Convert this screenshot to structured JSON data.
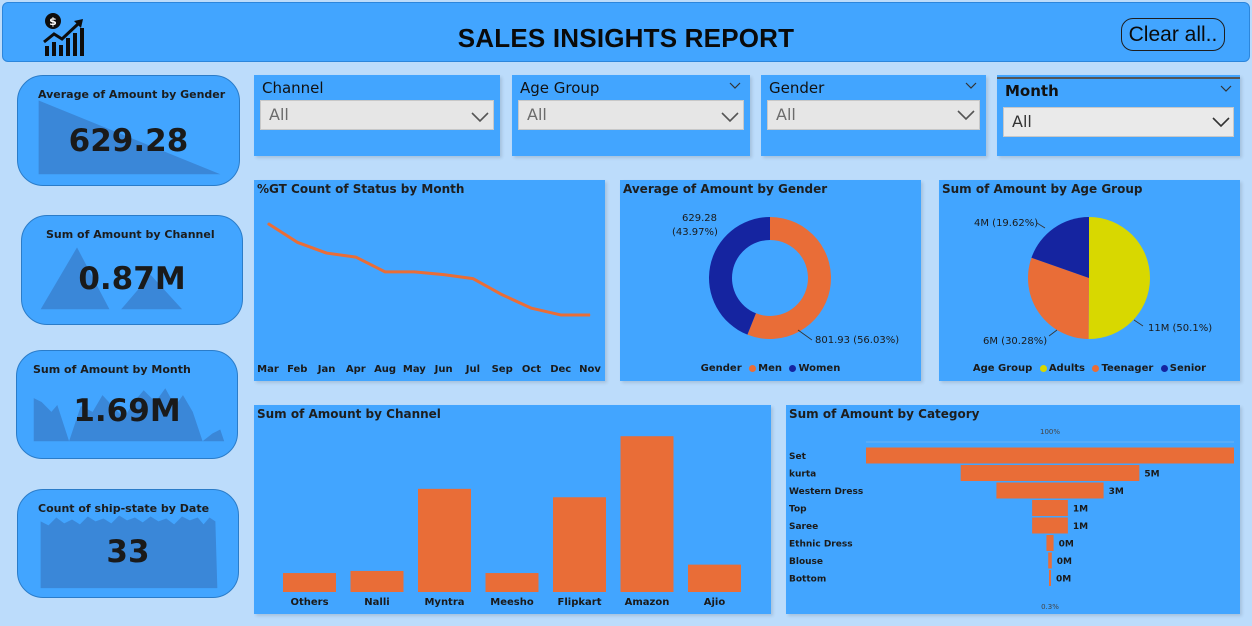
{
  "header": {
    "title": "SALES INSIGHTS REPORT",
    "clear_label": "Clear all..",
    "logo_icon": "sales-growth-chart-icon",
    "logo_badge": "$"
  },
  "colors": {
    "background": "#bcdcfb",
    "panel": "#42a5ff",
    "orange": "#e96d37",
    "navy": "#1524a0",
    "yellow": "#d8d800",
    "kpi_shape": "#3a87d8"
  },
  "kpis": [
    {
      "title": "Average of Amount by Gender",
      "value": "629.28"
    },
    {
      "title": "Sum of Amount by Channel",
      "value": "0.87M"
    },
    {
      "title": "Sum of Amount by Month",
      "value": "1.69M"
    },
    {
      "title": "Count of ship-state by Date",
      "value": "33"
    }
  ],
  "slicers": [
    {
      "label": "Channel",
      "value": "All"
    },
    {
      "label": "Age Group",
      "value": "All"
    },
    {
      "label": "Gender",
      "value": "All"
    },
    {
      "label": "Month",
      "value": "All"
    }
  ],
  "chart_data": [
    {
      "type": "line",
      "title": "%GT Count of Status by Month",
      "categories": [
        "Mar",
        "Feb",
        "Jan",
        "Apr",
        "Aug",
        "May",
        "Jun",
        "Jul",
        "Sep",
        "Oct",
        "Dec",
        "Nov"
      ],
      "values": [
        100,
        86,
        78,
        75,
        64,
        64,
        62,
        59,
        47,
        37,
        32,
        32
      ],
      "ylim": [
        0,
        110
      ],
      "color": "#e96d37"
    },
    {
      "type": "pie",
      "donut": true,
      "title": "Average of Amount by Gender",
      "legend_title": "Gender",
      "slices": [
        {
          "name": "Men",
          "value": 801.93,
          "label": "801.93 (56.03%)",
          "color": "#e96d37"
        },
        {
          "name": "Women",
          "value": 629.28,
          "label_line1": "629.28",
          "label_line2": "(43.97%)",
          "color": "#1524a0"
        }
      ]
    },
    {
      "type": "pie",
      "title": "Sum of Amount by Age Group",
      "legend_title": "Age Group",
      "slices": [
        {
          "name": "Adults",
          "value": 50.1,
          "label": "11M (50.1%)",
          "color": "#d8d800"
        },
        {
          "name": "Teenager",
          "value": 30.28,
          "label": "6M (30.28%)",
          "color": "#e96d37"
        },
        {
          "name": "Senior",
          "value": 19.62,
          "label": "4M (19.62%)",
          "color": "#1524a0"
        }
      ]
    },
    {
      "type": "bar",
      "title": "Sum of Amount by Channel",
      "categories": [
        "Others",
        "Nalli",
        "Myntra",
        "Meesho",
        "Flipkart",
        "Amazon",
        "Ajio"
      ],
      "values": [
        0.9,
        1.0,
        4.9,
        0.9,
        4.5,
        7.4,
        1.3
      ],
      "ylim": [
        0,
        7.6
      ],
      "color": "#e96d37"
    },
    {
      "type": "bar",
      "orientation": "funnel",
      "title": "Sum of Amount by Category",
      "top_label": "100%",
      "bottom_label": "0.3%",
      "categories": [
        "Set",
        "kurta",
        "Western Dress",
        "Top",
        "Saree",
        "Ethnic Dress",
        "Blouse",
        "Bottom"
      ],
      "values": [
        10.3,
        5.0,
        3.0,
        1.0,
        1.0,
        0.2,
        0.1,
        0.03
      ],
      "value_labels": [
        "",
        "5M",
        "3M",
        "1M",
        "1M",
        "0M",
        "0M",
        "0M"
      ],
      "color": "#e96d37"
    }
  ]
}
